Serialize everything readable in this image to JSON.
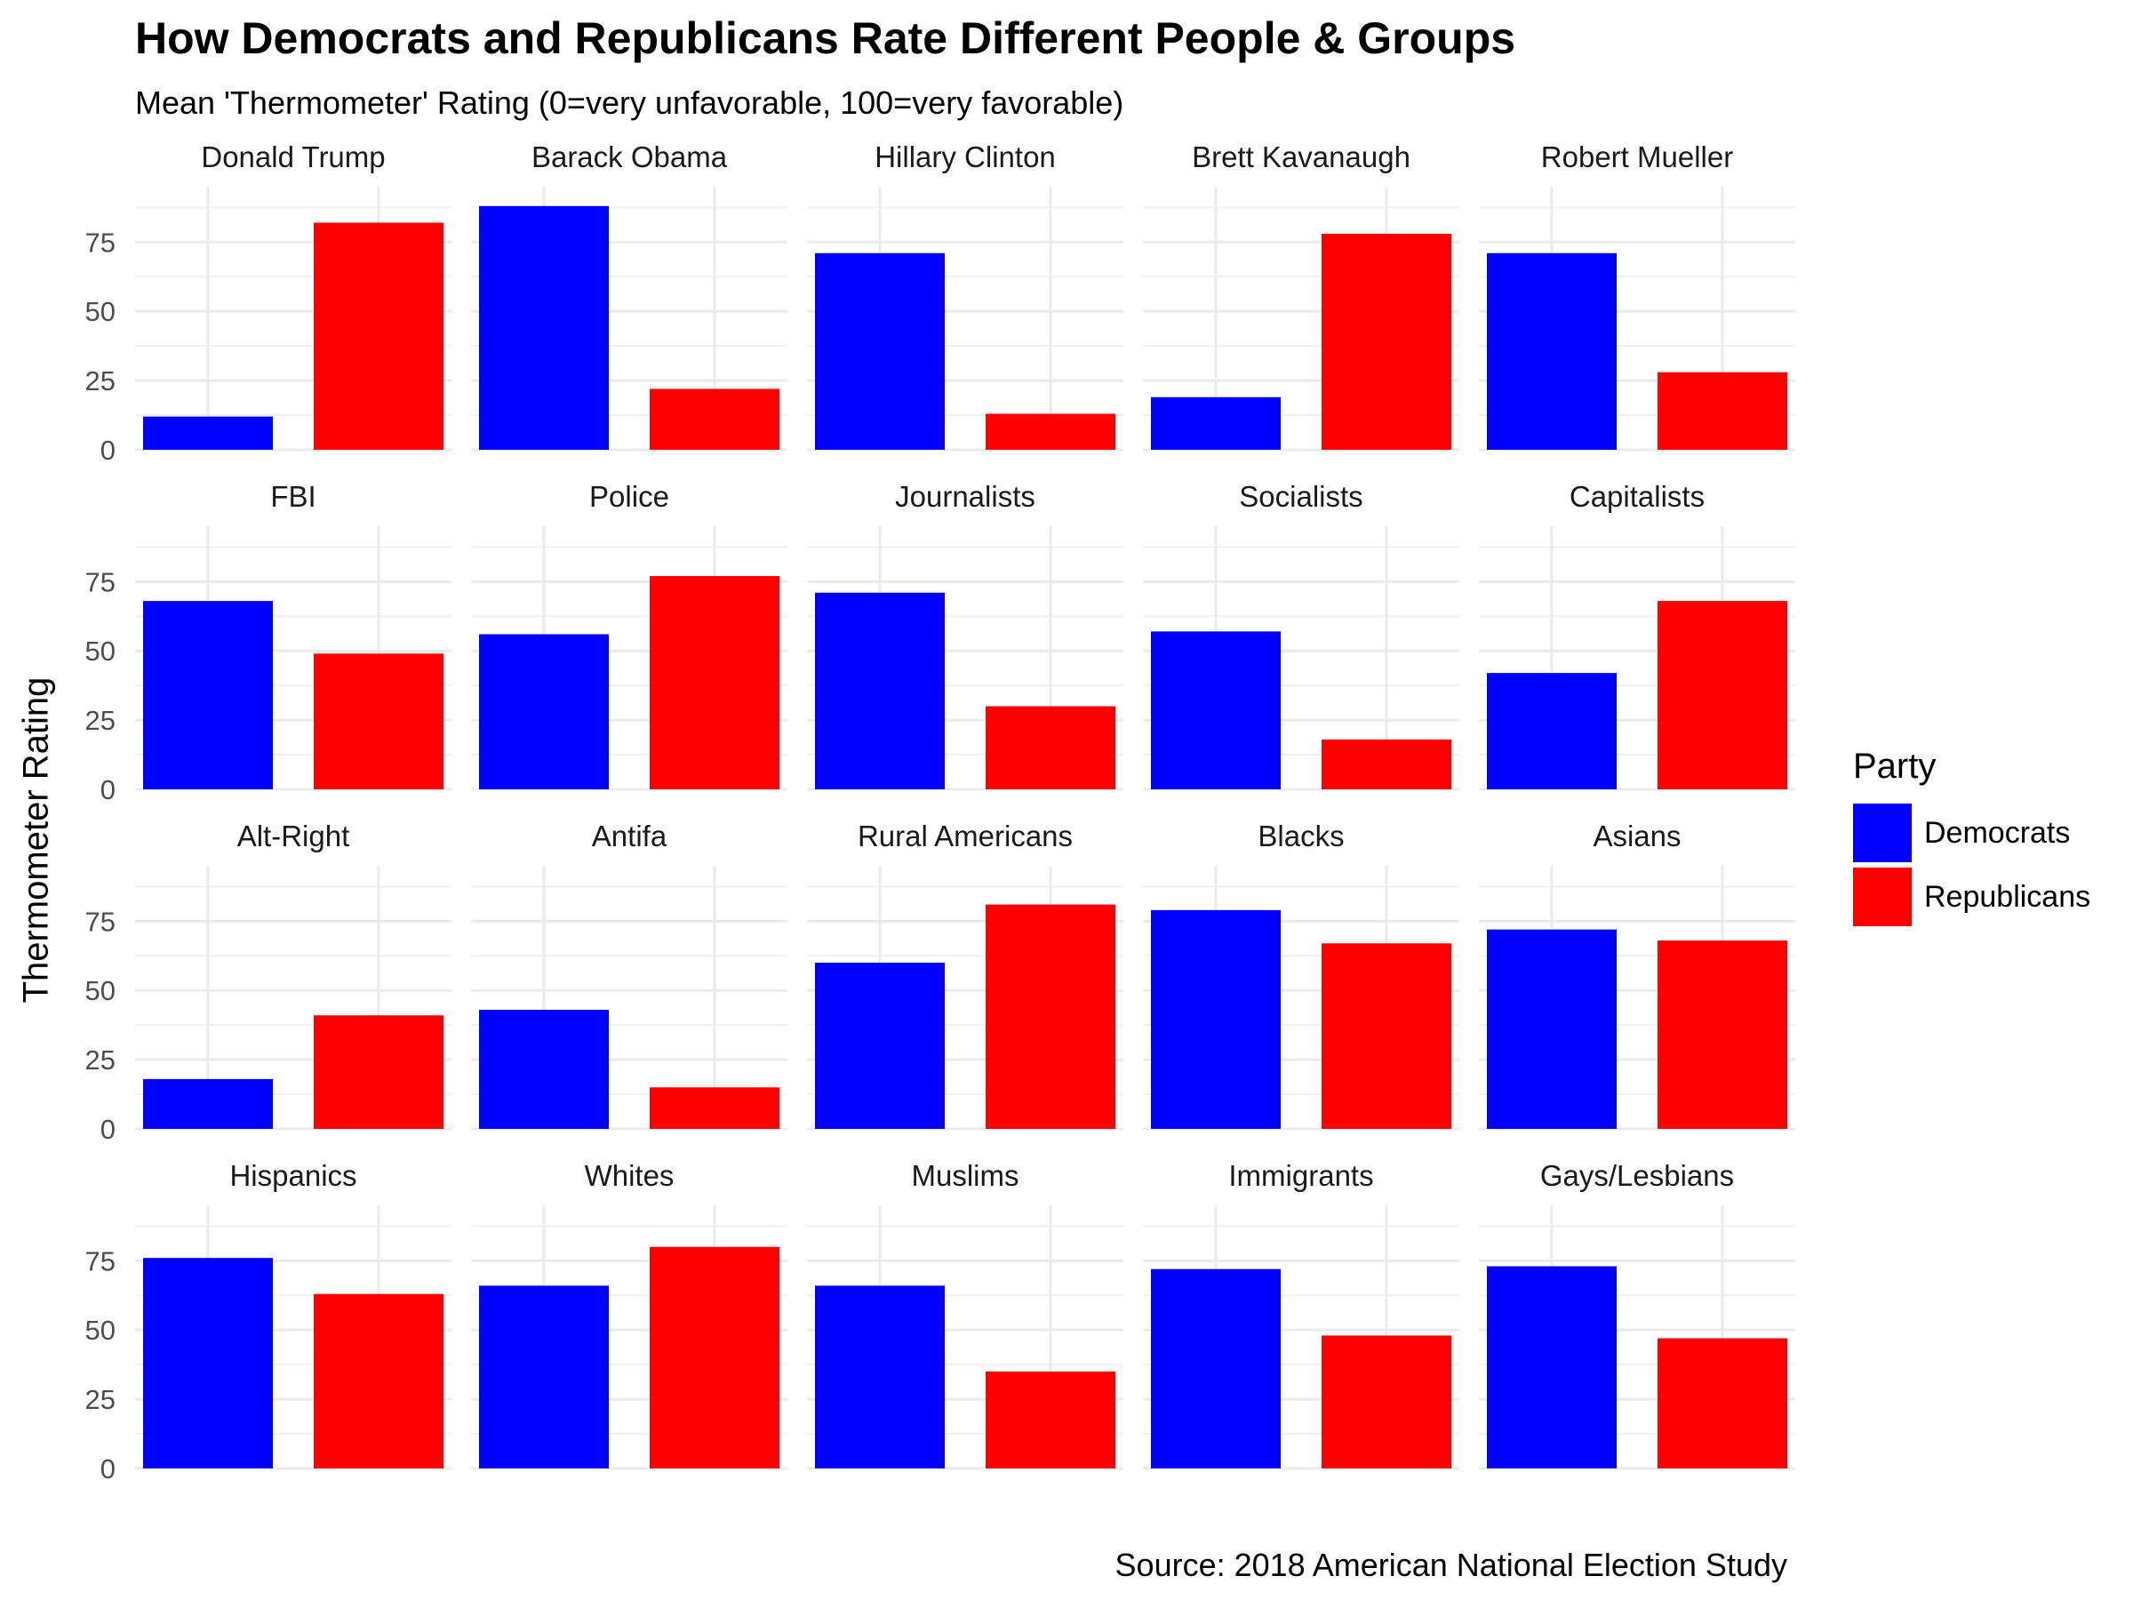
{
  "chart_data": {
    "type": "bar",
    "title": "How Democrats and Republicans Rate Different People & Groups",
    "subtitle": "Mean 'Thermometer' Rating (0=very unfavorable, 100=very favorable)",
    "ylabel": "Thermometer Rating",
    "caption": "Source: 2018 American National Election Study",
    "ylim": [
      0,
      95
    ],
    "yticks": [
      "0",
      "25",
      "50",
      "75"
    ],
    "grid": true,
    "legend": {
      "title": "Party",
      "position": "right",
      "items": [
        {
          "name": "Democrats",
          "color": "#0000FF"
        },
        {
          "name": "Republicans",
          "color": "#FF0000"
        }
      ]
    },
    "series_names": [
      "Democrats",
      "Republicans"
    ],
    "colors": [
      "#0000FF",
      "#FF0000"
    ],
    "panels": [
      {
        "label": "Donald Trump",
        "values": [
          12,
          82
        ]
      },
      {
        "label": "Barack Obama",
        "values": [
          88,
          22
        ]
      },
      {
        "label": "Hillary Clinton",
        "values": [
          71,
          13
        ]
      },
      {
        "label": "Brett Kavanaugh",
        "values": [
          19,
          78
        ]
      },
      {
        "label": "Robert Mueller",
        "values": [
          71,
          28
        ]
      },
      {
        "label": "FBI",
        "values": [
          68,
          49
        ]
      },
      {
        "label": "Police",
        "values": [
          56,
          77
        ]
      },
      {
        "label": "Journalists",
        "values": [
          71,
          30
        ]
      },
      {
        "label": "Socialists",
        "values": [
          57,
          18
        ]
      },
      {
        "label": "Capitalists",
        "values": [
          42,
          68
        ]
      },
      {
        "label": "Alt-Right",
        "values": [
          18,
          41
        ]
      },
      {
        "label": "Antifa",
        "values": [
          43,
          15
        ]
      },
      {
        "label": "Rural Americans",
        "values": [
          60,
          81
        ]
      },
      {
        "label": "Blacks",
        "values": [
          79,
          67
        ]
      },
      {
        "label": "Asians",
        "values": [
          72,
          68
        ]
      },
      {
        "label": "Hispanics",
        "values": [
          76,
          63
        ]
      },
      {
        "label": "Whites",
        "values": [
          66,
          80
        ]
      },
      {
        "label": "Muslims",
        "values": [
          66,
          35
        ]
      },
      {
        "label": "Immigrants",
        "values": [
          72,
          48
        ]
      },
      {
        "label": "Gays/Lesbians",
        "values": [
          73,
          47
        ]
      }
    ]
  }
}
